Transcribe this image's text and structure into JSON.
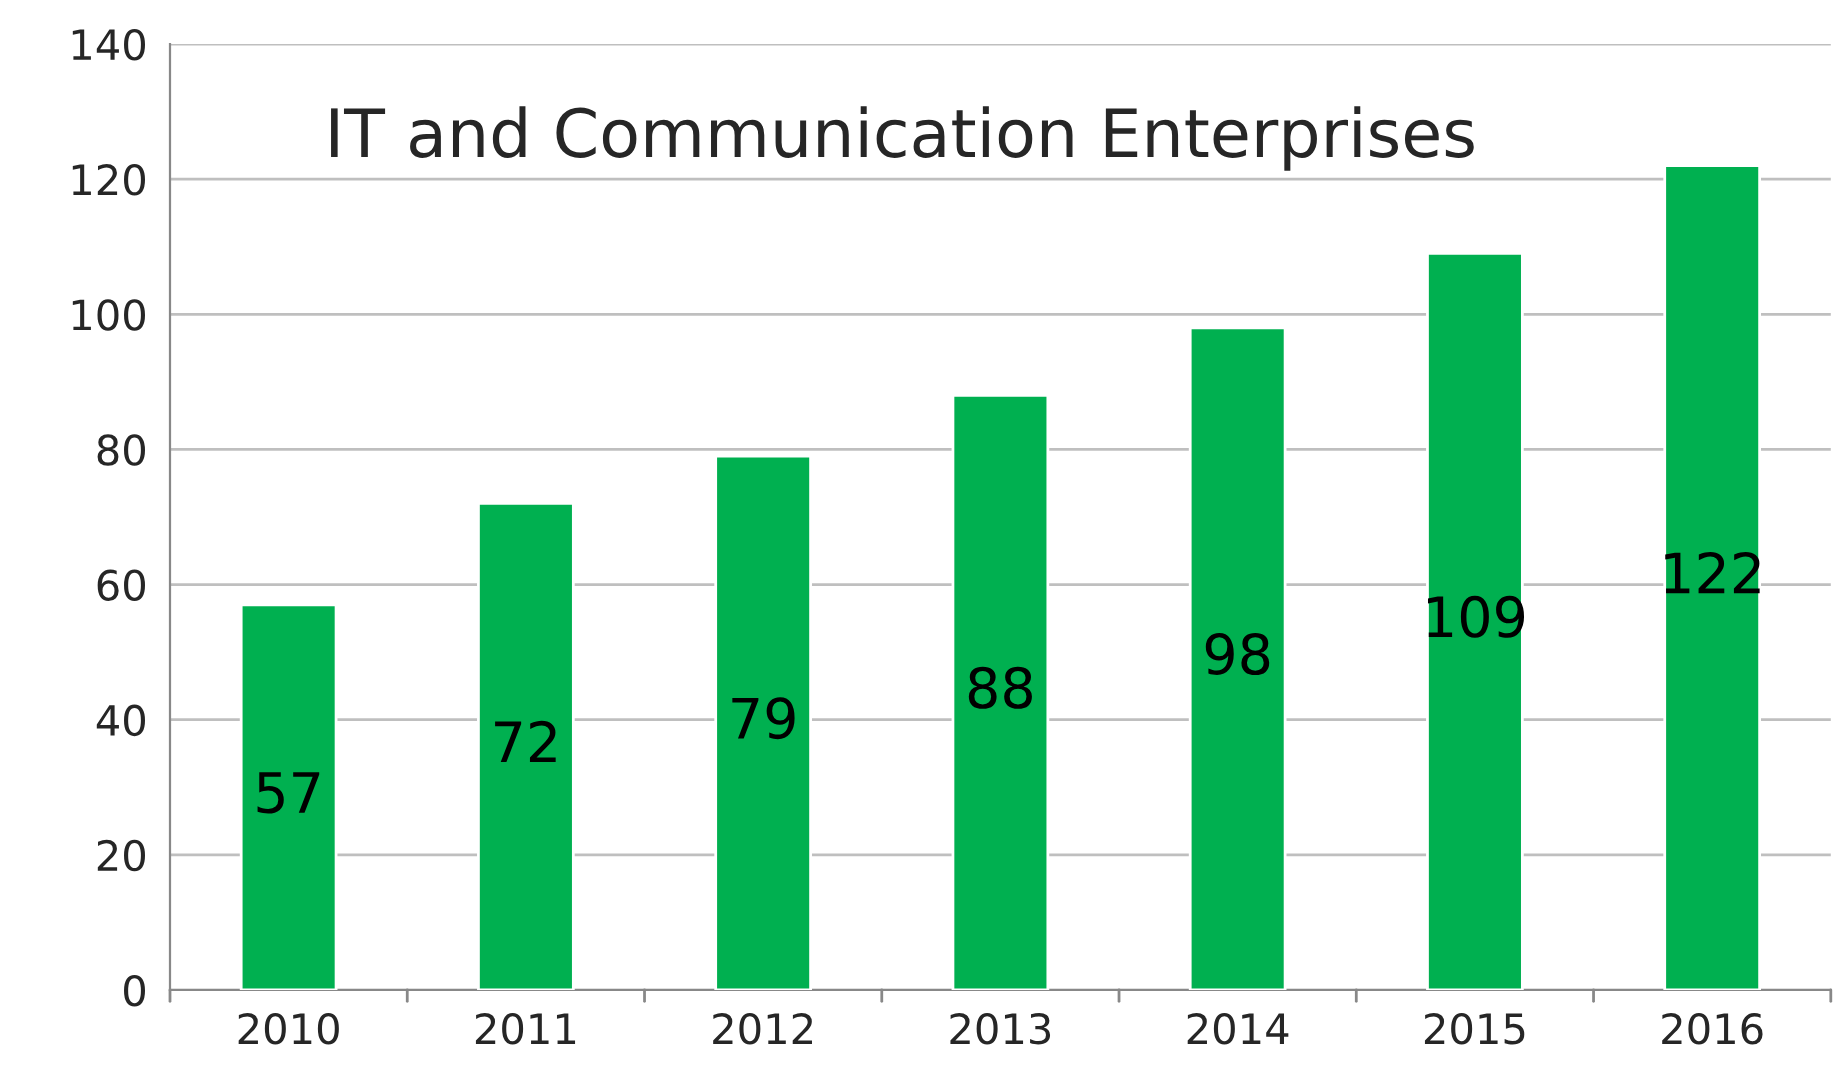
{
  "chart_data": {
    "type": "bar",
    "title": "IT and Communication Enterprises",
    "categories": [
      "2010",
      "2011",
      "2012",
      "2013",
      "2014",
      "2015",
      "2016"
    ],
    "values": [
      57,
      72,
      79,
      88,
      98,
      109,
      122
    ],
    "color": "#00b050",
    "ylim": [
      0,
      140
    ],
    "yticks": [
      0,
      20,
      40,
      60,
      80,
      100,
      120,
      140
    ],
    "grid": "y",
    "data_labels": true
  }
}
